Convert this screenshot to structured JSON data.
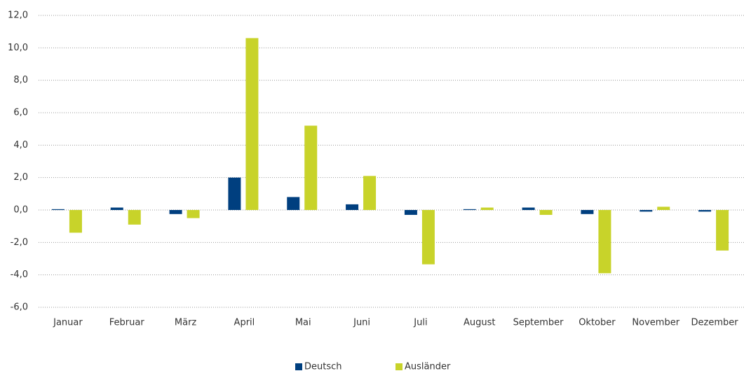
{
  "chart_data": {
    "type": "bar",
    "categories": [
      "Januar",
      "Februar",
      "März",
      "April",
      "Mai",
      "Juni",
      "Juli",
      "August",
      "September",
      "Oktober",
      "November",
      "Dezember"
    ],
    "series": [
      {
        "name": "Deutsch",
        "color": "#003f7f",
        "values": [
          0.05,
          0.15,
          -0.25,
          2.0,
          0.8,
          0.35,
          -0.3,
          0.05,
          0.15,
          -0.25,
          -0.1,
          -0.1
        ]
      },
      {
        "name": "Ausländer",
        "color": "#c8d32a",
        "values": [
          -1.4,
          -0.9,
          -0.5,
          10.6,
          5.2,
          2.1,
          -3.35,
          0.15,
          -0.3,
          -3.9,
          0.2,
          -2.5
        ]
      }
    ],
    "ylim": [
      -6,
      12
    ],
    "yticks": [
      {
        "value": -6,
        "label": "-6,0"
      },
      {
        "value": -4,
        "label": "-4,0"
      },
      {
        "value": -2,
        "label": "-2,0"
      },
      {
        "value": 0,
        "label": "0,0"
      },
      {
        "value": 2,
        "label": "2,0"
      },
      {
        "value": 4,
        "label": "4,0"
      },
      {
        "value": 6,
        "label": "6,0"
      },
      {
        "value": 8,
        "label": "8,0"
      },
      {
        "value": 10,
        "label": "10,0"
      },
      {
        "value": 12,
        "label": "12,0"
      }
    ],
    "grid": true
  }
}
